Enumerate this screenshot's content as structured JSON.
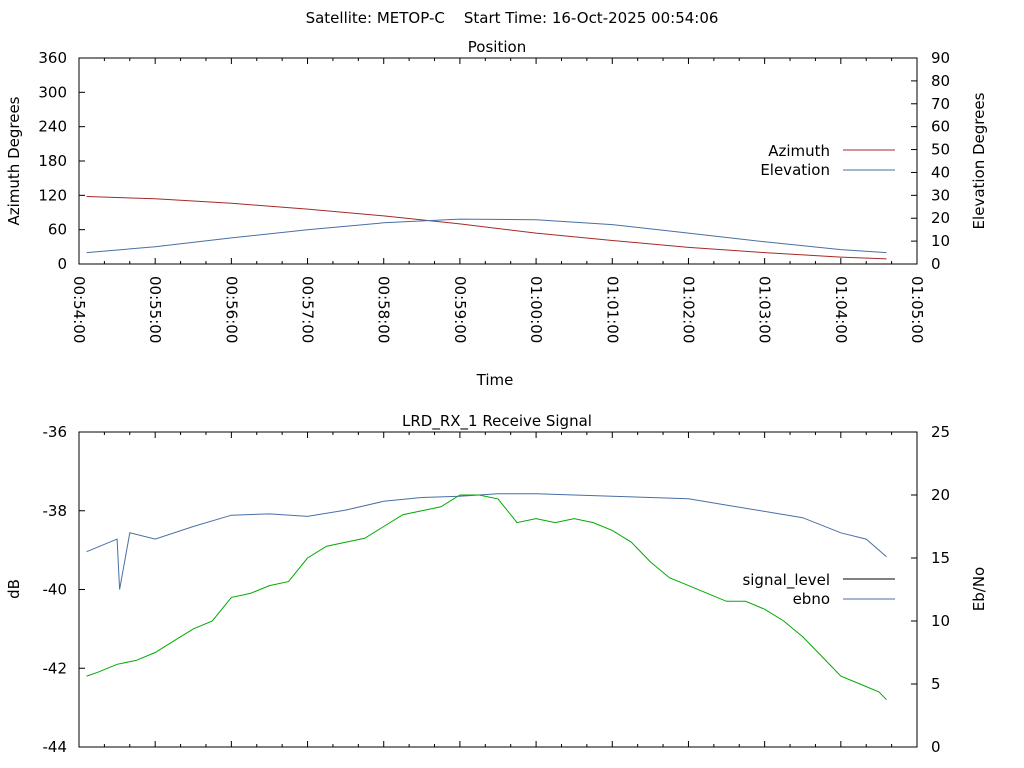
{
  "header": {
    "text": "Satellite: METOP-C    Start Time: 16-Oct-2025 00:54:06"
  },
  "chart_data": [
    {
      "type": "line",
      "title": "Position",
      "xlabel": "Time",
      "ylabel": "Azimuth Degrees",
      "y2label": "Elevation Degrees",
      "xlim": [
        "00:54:00",
        "01:05:00"
      ],
      "ylim": [
        0,
        360
      ],
      "y2lim": [
        0,
        90
      ],
      "xticks": [
        "00:54:00",
        "00:55:00",
        "00:56:00",
        "00:57:00",
        "00:58:00",
        "00:59:00",
        "01:00:00",
        "01:01:00",
        "01:02:00",
        "01:03:00",
        "01:04:00",
        "01:05:00"
      ],
      "yticks": [
        0,
        60,
        120,
        180,
        240,
        300,
        360
      ],
      "y2ticks": [
        0,
        10,
        20,
        30,
        40,
        50,
        60,
        70,
        80,
        90
      ],
      "legend_position": "right",
      "series": [
        {
          "name": "Azimuth",
          "axis": "y",
          "color": "#a52a2a",
          "x": [
            "00:54:06",
            "00:55:00",
            "00:56:00",
            "00:57:00",
            "00:58:00",
            "00:59:00",
            "01:00:00",
            "01:01:00",
            "01:02:00",
            "01:03:00",
            "01:04:00",
            "01:04:36"
          ],
          "y": [
            118,
            114,
            106,
            96,
            84,
            70,
            54,
            41,
            29,
            20,
            12,
            9
          ]
        },
        {
          "name": "Elevation",
          "axis": "y2",
          "color": "#4a6fa5",
          "x": [
            "00:54:06",
            "00:55:00",
            "00:56:00",
            "00:57:00",
            "00:58:00",
            "00:59:00",
            "01:00:00",
            "01:01:00",
            "01:02:00",
            "01:03:00",
            "01:04:00",
            "01:04:36"
          ],
          "y": [
            5,
            7.5,
            11.4,
            15,
            18,
            19.6,
            19.3,
            17.2,
            13.5,
            9.7,
            6.3,
            5
          ]
        }
      ]
    },
    {
      "type": "line",
      "title": "LRD_RX_1 Receive Signal",
      "xlabel": "",
      "ylabel": "dB",
      "y2label": "Eb/No",
      "xlim": [
        "00:54:00",
        "01:05:00"
      ],
      "ylim": [
        -44,
        -36
      ],
      "y2lim": [
        0,
        25
      ],
      "yticks": [
        -44,
        -42,
        -40,
        -38,
        -36
      ],
      "y2ticks": [
        0,
        5,
        10,
        15,
        20,
        25
      ],
      "legend_position": "right",
      "series": [
        {
          "name": "signal_level",
          "axis": "y",
          "color": "#000000",
          "x": [],
          "y": []
        },
        {
          "name": "ebno",
          "axis": "y2",
          "color": "#4a6fa5",
          "x": [
            "00:54:06",
            "00:54:30",
            "00:54:32",
            "00:54:40",
            "00:55:00",
            "00:55:30",
            "00:56:00",
            "00:56:30",
            "00:57:00",
            "00:57:30",
            "00:58:00",
            "00:58:30",
            "00:59:00",
            "00:59:30",
            "01:00:00",
            "01:00:30",
            "01:01:00",
            "01:01:30",
            "01:02:00",
            "01:02:30",
            "01:03:00",
            "01:03:30",
            "01:04:00",
            "01:04:20",
            "01:04:36"
          ],
          "y": [
            15.5,
            16.5,
            12.5,
            17.0,
            16.5,
            17.5,
            18.4,
            18.5,
            18.3,
            18.8,
            19.5,
            19.8,
            19.9,
            20.1,
            20.1,
            20.0,
            19.9,
            19.8,
            19.7,
            19.2,
            18.7,
            18.2,
            17.0,
            16.5,
            15.1
          ]
        },
        {
          "name": "",
          "axis": "y",
          "color": "#00aa00",
          "x": [
            "00:54:06",
            "00:54:15",
            "00:54:30",
            "00:54:45",
            "00:55:00",
            "00:55:15",
            "00:55:30",
            "00:55:45",
            "00:56:00",
            "00:56:15",
            "00:56:30",
            "00:56:45",
            "00:57:00",
            "00:57:15",
            "00:57:30",
            "00:57:45",
            "00:58:00",
            "00:58:15",
            "00:58:30",
            "00:58:45",
            "00:59:00",
            "00:59:15",
            "00:59:30",
            "00:59:45",
            "01:00:00",
            "01:00:15",
            "01:00:30",
            "01:00:45",
            "01:01:00",
            "01:01:15",
            "01:01:30",
            "01:01:45",
            "01:02:00",
            "01:02:15",
            "01:02:30",
            "01:02:45",
            "01:03:00",
            "01:03:15",
            "01:03:30",
            "01:03:45",
            "01:04:00",
            "01:04:15",
            "01:04:30",
            "01:04:36"
          ],
          "y": [
            -42.2,
            -42.1,
            -41.9,
            -41.8,
            -41.6,
            -41.3,
            -41.0,
            -40.8,
            -40.2,
            -40.1,
            -39.9,
            -39.8,
            -39.2,
            -38.9,
            -38.8,
            -38.7,
            -38.4,
            -38.1,
            -38.0,
            -37.9,
            -37.6,
            -37.6,
            -37.7,
            -38.3,
            -38.2,
            -38.3,
            -38.2,
            -38.3,
            -38.5,
            -38.8,
            -39.3,
            -39.7,
            -39.9,
            -40.1,
            -40.3,
            -40.3,
            -40.5,
            -40.8,
            -41.2,
            -41.7,
            -42.2,
            -42.4,
            -42.6,
            -42.8
          ]
        }
      ]
    }
  ]
}
